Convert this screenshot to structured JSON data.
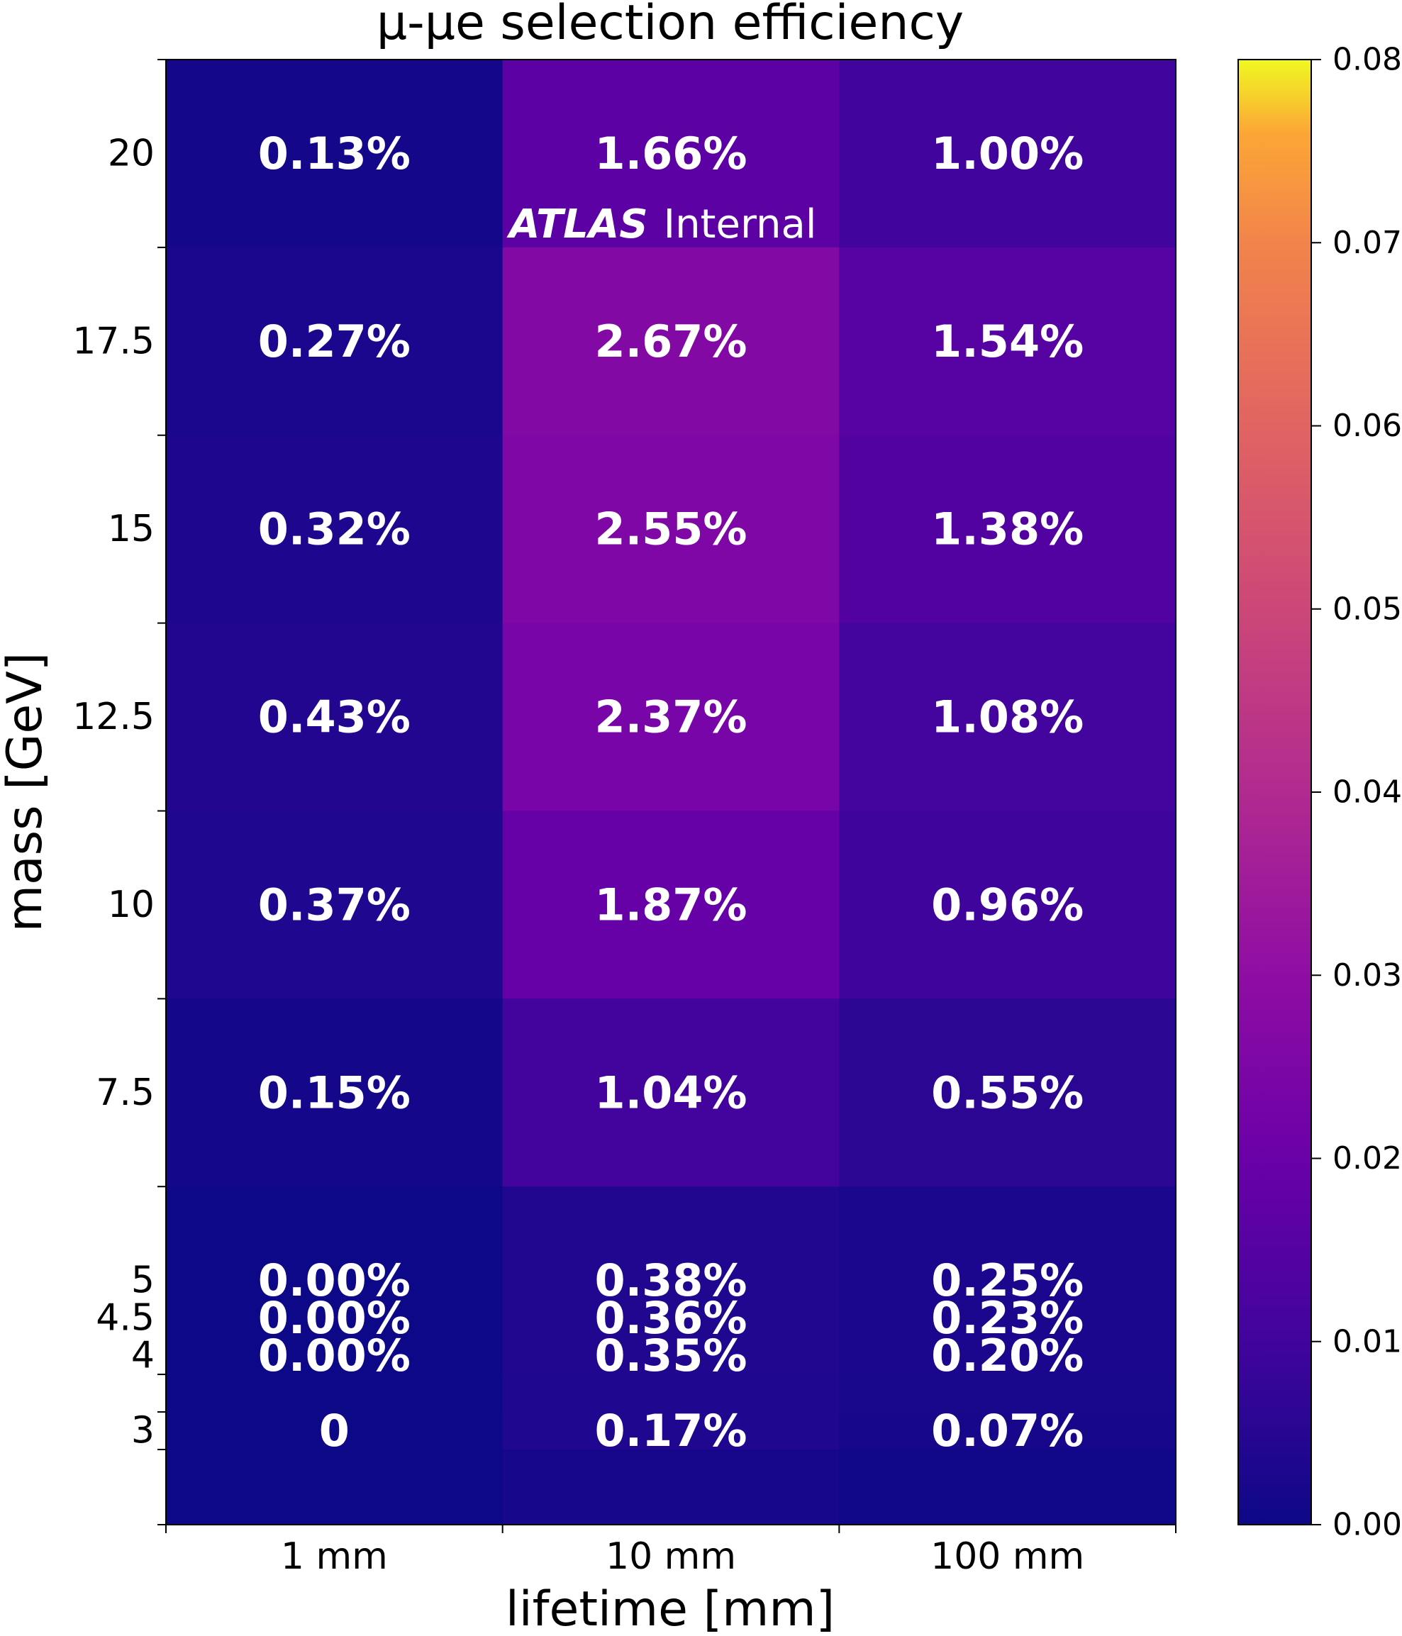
{
  "chart_data": {
    "type": "heatmap",
    "title": "μ-μe selection efficiency",
    "xlabel": "lifetime [mm]",
    "ylabel": "mass [GeV]",
    "x_categories": [
      "1 mm",
      "10 mm",
      "100 mm"
    ],
    "y_tick_labels": [
      "20",
      "17.5",
      "15",
      "12.5",
      "10",
      "7.5",
      "5",
      "4.5",
      "4",
      "3"
    ],
    "rows": [
      {
        "mass": 20,
        "values": [
          0.0013,
          0.0166,
          0.01
        ],
        "labels": [
          "0.13%",
          "1.66%",
          "1.00%"
        ]
      },
      {
        "mass": 17.5,
        "values": [
          0.0027,
          0.0267,
          0.0154
        ],
        "labels": [
          "0.27%",
          "2.67%",
          "1.54%"
        ]
      },
      {
        "mass": 15,
        "values": [
          0.0032,
          0.0255,
          0.0138
        ],
        "labels": [
          "0.32%",
          "2.55%",
          "1.38%"
        ]
      },
      {
        "mass": 12.5,
        "values": [
          0.0043,
          0.0237,
          0.0108
        ],
        "labels": [
          "0.43%",
          "2.37%",
          "1.08%"
        ]
      },
      {
        "mass": 10,
        "values": [
          0.0037,
          0.0187,
          0.0096
        ],
        "labels": [
          "0.37%",
          "1.87%",
          "0.96%"
        ]
      },
      {
        "mass": 7.5,
        "values": [
          0.0015,
          0.0104,
          0.0055
        ],
        "labels": [
          "0.15%",
          "1.04%",
          "0.55%"
        ]
      },
      {
        "mass": 5,
        "values": [
          0.0,
          0.0038,
          0.0025
        ],
        "labels": [
          "0.00%",
          "0.38%",
          "0.25%"
        ]
      },
      {
        "mass": 4.5,
        "values": [
          0.0,
          0.0036,
          0.0023
        ],
        "labels": [
          "0.00%",
          "0.36%",
          "0.23%"
        ]
      },
      {
        "mass": 4,
        "values": [
          0.0,
          0.0035,
          0.002
        ],
        "labels": [
          "0.00%",
          "0.35%",
          "0.20%"
        ]
      },
      {
        "mass": 3,
        "values": [
          0.0,
          0.0017,
          0.0007
        ],
        "labels": [
          "0",
          "0.17%",
          "0.07%"
        ]
      }
    ],
    "colorbar": {
      "colormap": "plasma",
      "range": [
        0,
        0.08
      ],
      "ticks": [
        0.0,
        0.01,
        0.02,
        0.03,
        0.04,
        0.05,
        0.06,
        0.07,
        0.08
      ],
      "tick_labels": [
        "0.00",
        "0.01",
        "0.02",
        "0.03",
        "0.04",
        "0.05",
        "0.06",
        "0.07",
        "0.08"
      ]
    },
    "annotation": {
      "bold": "ATLAS",
      "text": "Internal"
    }
  }
}
